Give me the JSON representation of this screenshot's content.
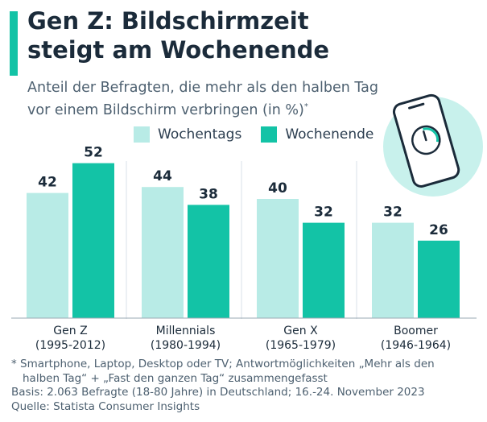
{
  "title_line1": "Gen Z: Bildschirmzeit",
  "title_line2": "steigt am Wochenende",
  "subtitle_line1": "Anteil der Befragten, die mehr als den halben Tag",
  "subtitle_line2": "vor einem Bildschirm verbringen (in %)",
  "subtitle_mark": "*",
  "legend": [
    {
      "label": "Wochentags",
      "color": "#b8ebe6"
    },
    {
      "label": "Wochenende",
      "color": "#13c3a6"
    }
  ],
  "chart_data": {
    "type": "bar",
    "categories": [
      {
        "name": "Gen Z",
        "sub": "(1995-2012)"
      },
      {
        "name": "Millennials",
        "sub": "(1980-1994)"
      },
      {
        "name": "Gen X",
        "sub": "(1965-1979)"
      },
      {
        "name": "Boomer",
        "sub": "(1946-1964)"
      }
    ],
    "series": [
      {
        "name": "Wochentags",
        "values": [
          42,
          44,
          40,
          32
        ],
        "color": "#b8ebe6"
      },
      {
        "name": "Wochenende",
        "values": [
          52,
          38,
          32,
          26
        ],
        "color": "#13c3a6"
      }
    ],
    "ylim": [
      0,
      52
    ]
  },
  "footnote": {
    "line1": "* Smartphone, Laptop, Desktop oder TV; Antwortmöglichkeiten „Mehr als den",
    "line2": "halben Tag“ + „Fast den ganzen Tag“ zusammengefasst",
    "basis": "Basis: 2.063 Befragte (18-80 Jahre) in Deutschland; 16.-24. November 2023",
    "source": "Quelle: Statista Consumer Insights"
  },
  "illustration": "phone-clock-icon"
}
